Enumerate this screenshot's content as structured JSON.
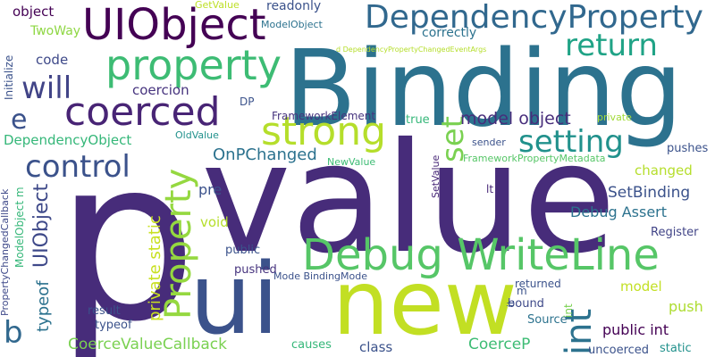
{
  "words": [
    {
      "text": "value",
      "color": "#472c7a"
    },
    {
      "text": "p",
      "color": "#472c7a"
    },
    {
      "text": "Binding",
      "color": "#2c728e"
    },
    {
      "text": "ui",
      "color": "#3b528b"
    },
    {
      "text": "new",
      "color": "#c2df23"
    },
    {
      "text": "UIObject",
      "color": "#440154"
    },
    {
      "text": "DependencyProperty",
      "color": "#31688e"
    },
    {
      "text": "property",
      "color": "#3dbc74"
    },
    {
      "text": "coerced",
      "color": "#482475"
    },
    {
      "text": "Debug WriteLine",
      "color": "#56c667"
    },
    {
      "text": "strong",
      "color": "#b5de2b"
    },
    {
      "text": "setting",
      "color": "#21918c"
    },
    {
      "text": "return",
      "color": "#20a386"
    },
    {
      "text": "control",
      "color": "#3b528b"
    },
    {
      "text": "Property",
      "color": "#95d840"
    },
    {
      "text": "will",
      "color": "#414487"
    },
    {
      "text": "int",
      "color": "#2c728e"
    },
    {
      "text": "set",
      "color": "#7ad151"
    },
    {
      "text": "e",
      "color": "#3b528b"
    },
    {
      "text": "b",
      "color": "#31688e"
    },
    {
      "text": "UIObject",
      "color": "#3e4989"
    },
    {
      "text": "model object",
      "color": "#472d7b"
    },
    {
      "text": "OnPChanged",
      "color": "#2c728e"
    },
    {
      "text": "SetBinding",
      "color": "#3b528b"
    },
    {
      "text": "Debug Assert",
      "color": "#2c728e"
    },
    {
      "text": "typeof",
      "color": "#2c728e"
    },
    {
      "text": "private static",
      "color": "#c8e020"
    },
    {
      "text": "CoerceValueCallback",
      "color": "#7ad151"
    },
    {
      "text": "CoerceP",
      "color": "#3dbc74"
    },
    {
      "text": "public int",
      "color": "#440154"
    },
    {
      "text": "push",
      "color": "#addc30"
    },
    {
      "text": "model",
      "color": "#c2df23"
    },
    {
      "text": "pre",
      "color": "#3b528b"
    },
    {
      "text": "code",
      "color": "#3e4989"
    },
    {
      "text": "coercion",
      "color": "#46337e"
    },
    {
      "text": "DependencyObject",
      "color": "#35b779"
    },
    {
      "text": "changed",
      "color": "#b5de2b"
    },
    {
      "text": "object",
      "color": "#440154"
    },
    {
      "text": "TwoWay",
      "color": "#8fd744"
    },
    {
      "text": "correctly",
      "color": "#2c728e"
    },
    {
      "text": "readonly",
      "color": "#3b528b"
    },
    {
      "text": "void",
      "color": "#b5de2b"
    },
    {
      "text": "public",
      "color": "#3b528b"
    },
    {
      "text": "pushed",
      "color": "#46337e"
    },
    {
      "text": "class",
      "color": "#3b528b"
    },
    {
      "text": "causes",
      "color": "#35b779"
    },
    {
      "text": "result",
      "color": "#3b528b"
    },
    {
      "text": "typeof",
      "color": "#3b528b"
    },
    {
      "text": "Source",
      "color": "#2c728e"
    },
    {
      "text": "bound",
      "color": "#3e4989"
    },
    {
      "text": "returned",
      "color": "#3b528b"
    },
    {
      "text": "uncoerced",
      "color": "#3b528b"
    },
    {
      "text": "static",
      "color": "#21918c"
    },
    {
      "text": "Register",
      "color": "#414487"
    },
    {
      "text": "pushes",
      "color": "#3b528b"
    },
    {
      "text": "FrameworkElement",
      "color": "#46337e"
    },
    {
      "text": "true",
      "color": "#35b779"
    },
    {
      "text": "private",
      "color": "#a2da37"
    },
    {
      "text": "sender",
      "color": "#3b528b"
    },
    {
      "text": "FrameworkPropertyMetadata",
      "color": "#56c667"
    },
    {
      "text": "lt",
      "color": "#482878"
    },
    {
      "text": "OldValue",
      "color": "#21918c"
    },
    {
      "text": "NewValue",
      "color": "#3dbc74"
    },
    {
      "text": "DP",
      "color": "#3b528b"
    },
    {
      "text": "GetValue",
      "color": "#bddf26"
    },
    {
      "text": "ModelObject",
      "color": "#2c728e"
    },
    {
      "text": "d DependencyPropertyChangedEventArgs",
      "color": "#b5de2b"
    },
    {
      "text": "Mode BindingMode",
      "color": "#3b528b"
    },
    {
      "text": "m",
      "color": "#3b528b"
    },
    {
      "text": "ModelObject m",
      "color": "#35b779"
    },
    {
      "text": "Initialize",
      "color": "#3b528b"
    },
    {
      "text": "PropertyChangedCallback",
      "color": "#3e4989"
    },
    {
      "text": "SetValue",
      "color": "#482878"
    },
    {
      "text": "it",
      "color": "#3b528b"
    },
    {
      "text": "int",
      "color": "#7ad151"
    }
  ]
}
